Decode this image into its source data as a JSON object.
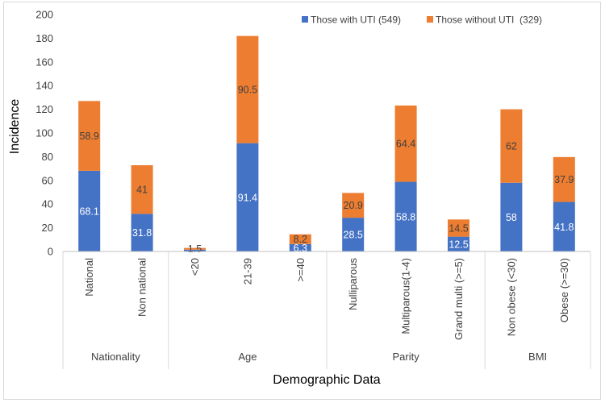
{
  "chart_data": {
    "type": "bar",
    "stacked": true,
    "categories": [
      "National",
      "Non national",
      "<20",
      "21-39",
      ">=40",
      "Nulliparous",
      "Multiparous(1-4)",
      "Grand multi (>=5)",
      "Non obese (<30)",
      "Obese (>=30)"
    ],
    "groups": [
      {
        "label": "Nationality",
        "span": 2
      },
      {
        "label": "Age",
        "span": 3
      },
      {
        "label": "Parity",
        "span": 3
      },
      {
        "label": "BMI",
        "span": 2
      }
    ],
    "series": [
      {
        "name": "Those with UTI (549)",
        "color": "#4472C4",
        "label_color": "#ffffff",
        "values": [
          68.1,
          31.8,
          1.5,
          91.4,
          6.3,
          28.5,
          58.8,
          12.5,
          58,
          41.8
        ],
        "labels": [
          "68.1",
          "31.8",
          "",
          "91.4",
          "6.3",
          "28.5",
          "58.8",
          "12.5",
          "58",
          "41.8"
        ]
      },
      {
        "name": "Those without UTI  (329)",
        "color": "#ED7D31",
        "label_color": "#404040",
        "values": [
          58.9,
          41,
          1.5,
          90.5,
          8.2,
          20.9,
          64.4,
          14.5,
          62,
          37.9
        ],
        "labels": [
          "58.9",
          "41",
          "1.5",
          "90.5",
          "8.2",
          "20.9",
          "64.4",
          "14.5",
          "62",
          "37.9"
        ]
      }
    ],
    "yticks": [
      "0",
      "20",
      "40",
      "60",
      "80",
      "100",
      "120",
      "140",
      "160",
      "180",
      "200"
    ],
    "ylim": [
      0,
      200
    ],
    "xlabel": "Demographic Data",
    "ylabel": "Incidence",
    "grid": false,
    "legend": "top-right"
  }
}
